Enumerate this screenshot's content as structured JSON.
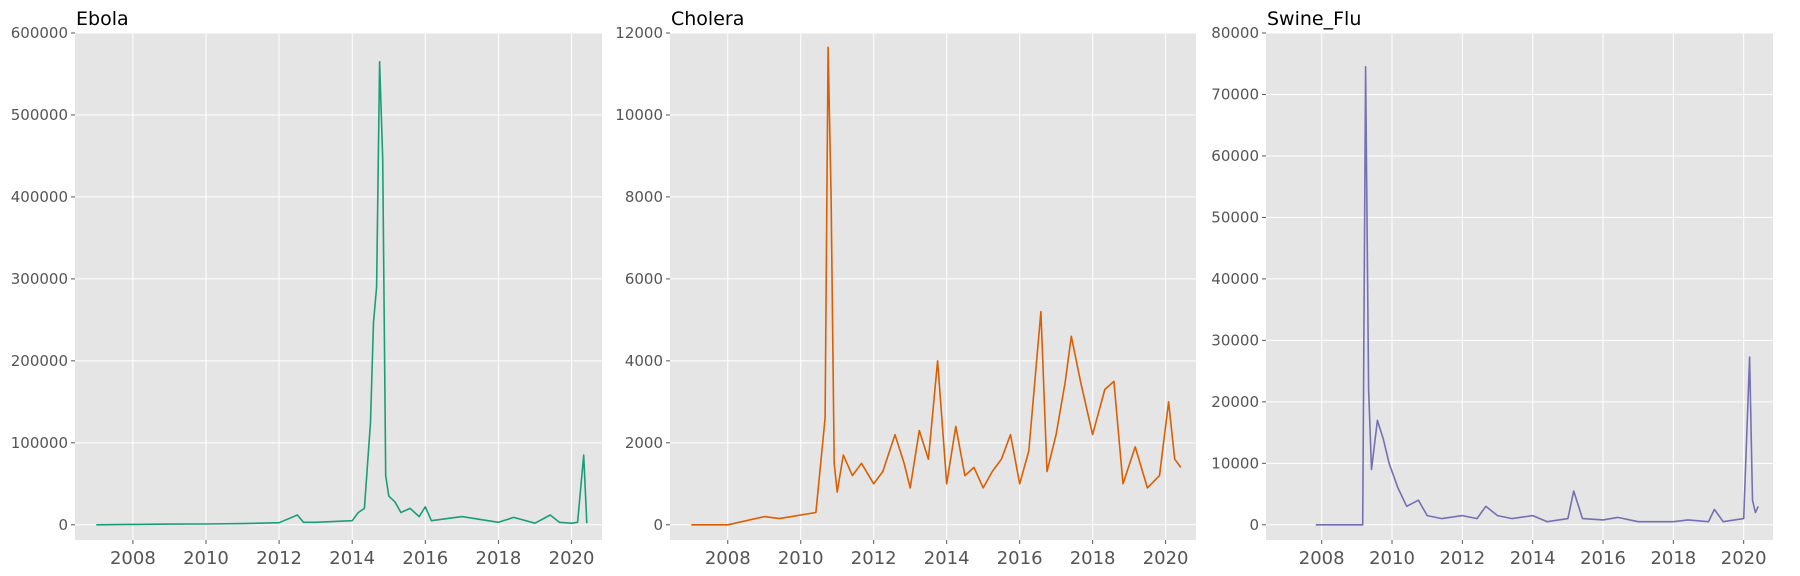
{
  "chart_data": [
    {
      "type": "line",
      "title": "Ebola",
      "color": "#1b9e77",
      "ylim": [
        0,
        600000
      ],
      "yticks": [
        0,
        100000,
        200000,
        300000,
        400000,
        500000,
        600000
      ],
      "xticks": [
        "2008",
        "2010",
        "2012",
        "2014",
        "2016",
        "2018",
        "2020"
      ],
      "xlim": [
        "2006-06",
        "2020-11"
      ],
      "grid": true,
      "x": [
        "2007-01",
        "2008-01",
        "2009-01",
        "2010-01",
        "2011-01",
        "2012-01",
        "2012-07",
        "2012-09",
        "2013-01",
        "2014-01",
        "2014-03",
        "2014-05",
        "2014-07",
        "2014-08",
        "2014-09",
        "2014-10",
        "2014-11",
        "2014-12",
        "2015-01",
        "2015-03",
        "2015-05",
        "2015-08",
        "2015-11",
        "2016-01",
        "2016-03",
        "2017-01",
        "2018-01",
        "2018-06",
        "2019-01",
        "2019-06",
        "2019-09",
        "2020-01",
        "2020-03",
        "2020-05",
        "2020-06"
      ],
      "values": [
        0,
        500,
        800,
        1000,
        1500,
        2500,
        12000,
        3000,
        3000,
        5000,
        15000,
        20000,
        125000,
        247000,
        290000,
        565000,
        447000,
        60000,
        35000,
        28000,
        15000,
        20000,
        10000,
        22000,
        5000,
        10000,
        3000,
        9000,
        2000,
        12000,
        3000,
        2000,
        3000,
        85000,
        2000
      ]
    },
    {
      "type": "line",
      "title": "Cholera",
      "color": "#d95f02",
      "ylim": [
        0,
        12000
      ],
      "yticks": [
        0,
        2000,
        4000,
        6000,
        8000,
        10000,
        12000
      ],
      "xticks": [
        "2008",
        "2010",
        "2012",
        "2014",
        "2016",
        "2018",
        "2020"
      ],
      "xlim": [
        "2006-06",
        "2020-11"
      ],
      "grid": true,
      "x": [
        "2007-01",
        "2008-01",
        "2009-01",
        "2009-06",
        "2010-06",
        "2010-09",
        "2010-10",
        "2010-11",
        "2010-12",
        "2011-01",
        "2011-03",
        "2011-06",
        "2011-09",
        "2012-01",
        "2012-04",
        "2012-08",
        "2012-11",
        "2013-01",
        "2013-04",
        "2013-07",
        "2013-10",
        "2014-01",
        "2014-04",
        "2014-07",
        "2014-10",
        "2015-01",
        "2015-04",
        "2015-07",
        "2015-10",
        "2016-01",
        "2016-04",
        "2016-08",
        "2016-10",
        "2017-01",
        "2017-04",
        "2017-06",
        "2017-09",
        "2018-01",
        "2018-05",
        "2018-08",
        "2018-11",
        "2019-03",
        "2019-07",
        "2019-11",
        "2020-02",
        "2020-04",
        "2020-06"
      ],
      "values": [
        0,
        0,
        200,
        150,
        300,
        2600,
        11650,
        8000,
        1500,
        800,
        1700,
        1200,
        1500,
        1000,
        1300,
        2200,
        1500,
        900,
        2300,
        1600,
        4000,
        1000,
        2400,
        1200,
        1400,
        900,
        1300,
        1600,
        2200,
        1000,
        1800,
        5200,
        1300,
        2200,
        3500,
        4600,
        3500,
        2200,
        3300,
        3500,
        1000,
        1900,
        900,
        1200,
        3000,
        1600,
        1400
      ]
    },
    {
      "type": "line",
      "title": "Swine_Flu",
      "color": "#7570b3",
      "ylim": [
        0,
        80000
      ],
      "yticks": [
        0,
        10000,
        20000,
        30000,
        40000,
        50000,
        60000,
        70000,
        80000
      ],
      "xticks": [
        "2008",
        "2010",
        "2012",
        "2014",
        "2016",
        "2018",
        "2020"
      ],
      "xlim": [
        "2006-06",
        "2020-11"
      ],
      "grid": true,
      "x": [
        "2007-11",
        "2008-06",
        "2009-01",
        "2009-03",
        "2009-04",
        "2009-05",
        "2009-06",
        "2009-08",
        "2009-10",
        "2009-12",
        "2010-03",
        "2010-06",
        "2010-10",
        "2011-01",
        "2011-06",
        "2012-01",
        "2012-06",
        "2012-09",
        "2013-01",
        "2013-06",
        "2014-01",
        "2014-06",
        "2015-01",
        "2015-03",
        "2015-06",
        "2016-01",
        "2016-06",
        "2017-01",
        "2018-01",
        "2018-06",
        "2019-01",
        "2019-03",
        "2019-06",
        "2020-01",
        "2020-03",
        "2020-04",
        "2020-05",
        "2020-06"
      ],
      "values": [
        0,
        0,
        0,
        0,
        74500,
        22000,
        9000,
        17000,
        14000,
        10000,
        6000,
        3000,
        4000,
        1500,
        1000,
        1500,
        1000,
        3000,
        1500,
        1000,
        1500,
        500,
        1000,
        5500,
        1000,
        800,
        1200,
        500,
        500,
        800,
        500,
        2500,
        500,
        1000,
        27300,
        4000,
        2000,
        3000
      ]
    }
  ]
}
